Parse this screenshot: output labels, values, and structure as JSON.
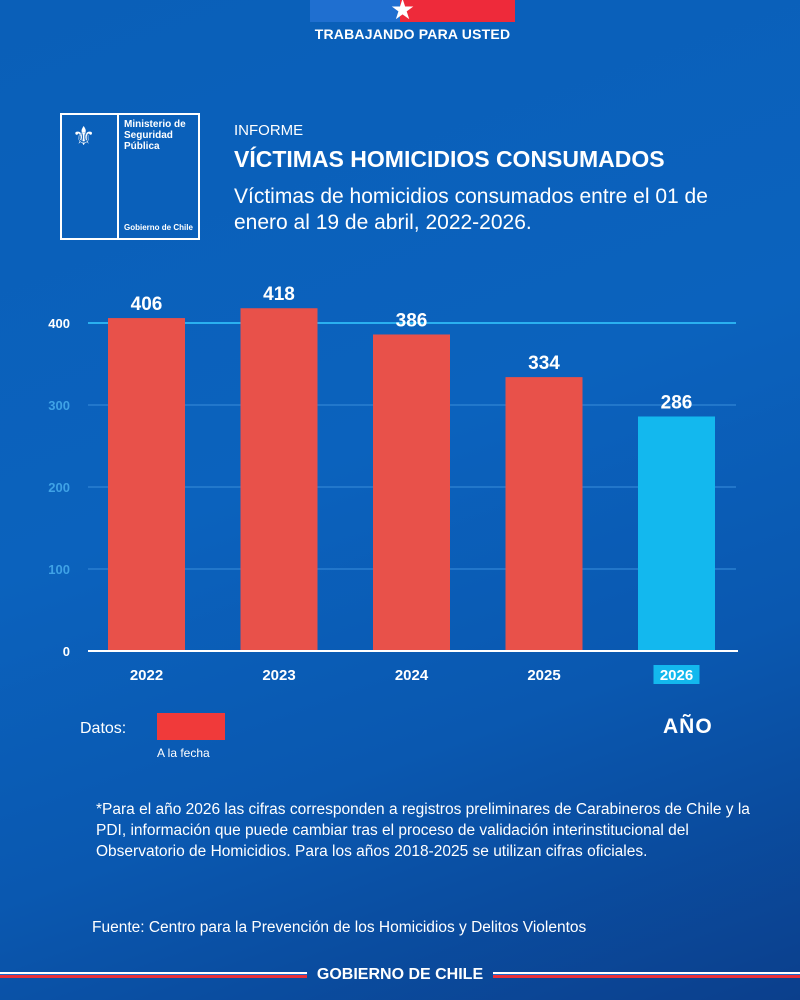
{
  "header": {
    "tagline": "TRABAJANDO PARA USTED"
  },
  "logo": {
    "ministry": "Ministerio de Seguridad Pública",
    "government": "Gobierno de Chile"
  },
  "informe": "INFORME",
  "chart_data": {
    "type": "bar",
    "title": "VÍCTIMAS HOMICIDIOS CONSUMADOS",
    "subtitle": "Víctimas de homicidios consumados entre el 01 de enero al 19 de abril, 2022-2026.",
    "categories": [
      "2022",
      "2023",
      "2024",
      "2025",
      "2026"
    ],
    "values": [
      406,
      418,
      386,
      334,
      286
    ],
    "colors": [
      "#e8514a",
      "#e8514a",
      "#e8514a",
      "#e8514a",
      "#13b8ee"
    ],
    "xlabel": "AÑO",
    "ylabel": "",
    "ylim": [
      0,
      400
    ],
    "yticks": [
      "0",
      "100",
      "200",
      "300",
      "400"
    ],
    "grid": true
  },
  "legend": {
    "label": "Datos:",
    "entry": "A la fecha",
    "color": "#f03a3a"
  },
  "note": "*Para el año 2026 las cifras corresponden a registros preliminares de Carabineros de Chile y la PDI, información que puede cambiar tras el proceso de validación interinstitucional del Observatorio de Homicidios. Para los años 2018-2025 se utilizan cifras oficiales.",
  "source": "Fuente:  Centro para la Prevención de los Homicidios y Delitos Violentos",
  "footer": {
    "text": "GOBIERNO DE CHILE"
  }
}
